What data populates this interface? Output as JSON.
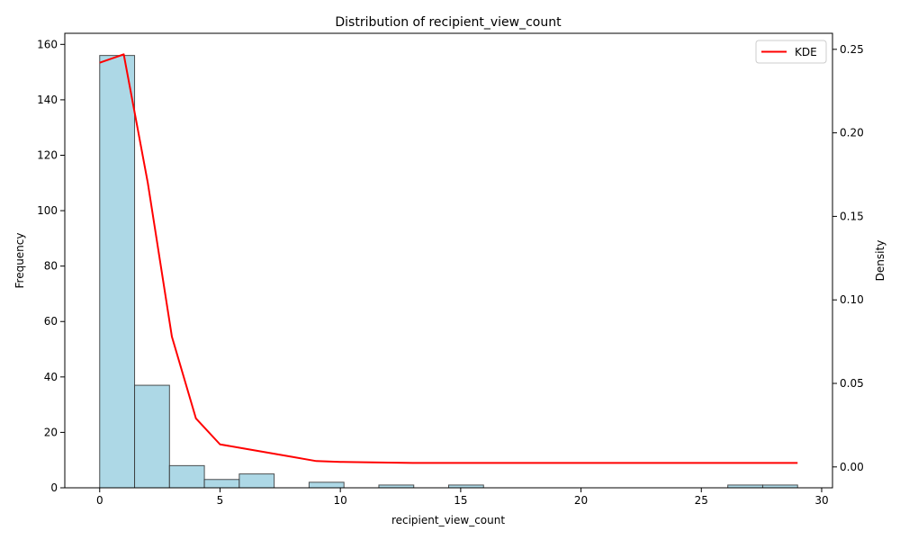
{
  "chart_data": {
    "type": "bar",
    "title": "Distribution of recipient_view_count",
    "xlabel": "recipient_view_count",
    "ylabel": "Frequency",
    "y2label": "Density",
    "xlim": [
      -1.45,
      30.45
    ],
    "ylim": [
      0,
      164
    ],
    "y2lim": [
      -0.0125,
      0.2596
    ],
    "x_ticks": [
      0,
      5,
      10,
      15,
      20,
      25,
      30
    ],
    "y_ticks": [
      0,
      20,
      40,
      60,
      80,
      100,
      120,
      140,
      160
    ],
    "y2_ticks": [
      0.0,
      0.05,
      0.1,
      0.15,
      0.2,
      0.25
    ],
    "y2_tick_labels": [
      "0.00",
      "0.05",
      "0.10",
      "0.15",
      "0.20",
      "0.25"
    ],
    "bar_color": "#add8e6",
    "bar_edge_color": "#333333",
    "line_color": "#ff0000",
    "histogram": {
      "bin_edges": [
        0,
        1.45,
        2.9,
        4.35,
        5.8,
        7.25,
        8.7,
        10.15,
        11.6,
        13.05,
        14.5,
        15.95,
        17.4,
        18.85,
        20.3,
        21.75,
        23.2,
        24.65,
        26.1,
        27.55,
        29.0
      ],
      "counts": [
        156,
        37,
        8,
        3,
        5,
        0,
        2,
        0,
        1,
        0,
        1,
        0,
        0,
        0,
        0,
        0,
        0,
        0,
        1,
        1
      ]
    },
    "series": [
      {
        "name": "KDE",
        "axis": "right",
        "x": [
          0,
          1,
          2,
          3,
          4,
          5,
          6,
          7,
          8,
          9,
          10,
          11,
          12,
          13,
          14,
          15,
          20,
          25,
          29
        ],
        "y": [
          0.242,
          0.247,
          0.17,
          0.078,
          0.029,
          0.0135,
          0.011,
          0.0085,
          0.006,
          0.0035,
          0.003,
          0.0028,
          0.0026,
          0.0024,
          0.0024,
          0.0024,
          0.0024,
          0.0024,
          0.0024
        ]
      }
    ],
    "legend": {
      "position": "top-right",
      "entries": [
        "KDE"
      ]
    },
    "grid": false
  }
}
